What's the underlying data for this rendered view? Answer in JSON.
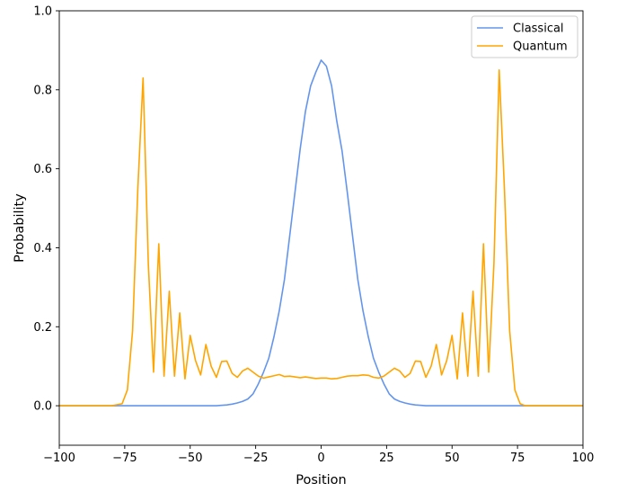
{
  "chart_data": {
    "type": "line",
    "title": "",
    "xlabel": "Position",
    "ylabel": "Probability",
    "xlim": [
      -100,
      100
    ],
    "ylim": [
      -0.1,
      1.0
    ],
    "xticks": [
      -100,
      -75,
      -50,
      -25,
      0,
      25,
      50,
      75,
      100
    ],
    "xtick_labels": [
      "−100",
      "−75",
      "−50",
      "−25",
      "0",
      "25",
      "50",
      "75",
      "100"
    ],
    "yticks": [
      0.0,
      0.2,
      0.4,
      0.6,
      0.8,
      1.0
    ],
    "ytick_labels": [
      "0.0",
      "0.2",
      "0.4",
      "0.6",
      "0.8",
      "1.0"
    ],
    "grid": false,
    "legend_position": "top-right",
    "series": [
      {
        "name": "Classical",
        "color": "#6495ed",
        "x": [
          -100,
          -80,
          -60,
          -40,
          -36,
          -34,
          -32,
          -30,
          -28,
          -26,
          -24,
          -22,
          -20,
          -18,
          -16,
          -14,
          -12,
          -10,
          -8,
          -6,
          -4,
          -2,
          0,
          2,
          4,
          6,
          8,
          10,
          12,
          14,
          16,
          18,
          20,
          22,
          24,
          26,
          28,
          30,
          32,
          34,
          36,
          40,
          60,
          80,
          100
        ],
        "y": [
          0.0,
          0.0,
          0.0,
          0.0,
          0.002,
          0.004,
          0.007,
          0.011,
          0.017,
          0.03,
          0.055,
          0.085,
          0.12,
          0.175,
          0.24,
          0.32,
          0.43,
          0.54,
          0.65,
          0.745,
          0.81,
          0.845,
          0.875,
          0.86,
          0.81,
          0.72,
          0.645,
          0.54,
          0.43,
          0.32,
          0.24,
          0.175,
          0.12,
          0.085,
          0.055,
          0.03,
          0.017,
          0.011,
          0.007,
          0.004,
          0.002,
          0.0,
          0.0,
          0.0,
          0.0
        ]
      },
      {
        "name": "Quantum",
        "color": "#ffa500",
        "x": [
          -100,
          -80,
          -76,
          -74,
          -72,
          -70,
          -68,
          -66,
          -64,
          -62,
          -60,
          -58,
          -56,
          -54,
          -52,
          -50,
          -48,
          -46,
          -44,
          -42,
          -40,
          -38,
          -36,
          -34,
          -32,
          -30,
          -28,
          -26,
          -24,
          -22,
          -20,
          -18,
          -16,
          -14,
          -12,
          -10,
          -8,
          -6,
          -4,
          -2,
          0,
          2,
          4,
          6,
          8,
          10,
          12,
          14,
          16,
          18,
          20,
          22,
          24,
          26,
          28,
          30,
          32,
          34,
          36,
          38,
          40,
          42,
          44,
          46,
          48,
          50,
          52,
          54,
          56,
          58,
          60,
          62,
          64,
          66,
          68,
          70,
          72,
          74,
          76,
          78,
          80,
          100
        ],
        "y": [
          0.0,
          0.0,
          0.005,
          0.04,
          0.19,
          0.55,
          0.83,
          0.36,
          0.085,
          0.41,
          0.075,
          0.29,
          0.075,
          0.235,
          0.068,
          0.178,
          0.115,
          0.078,
          0.155,
          0.1,
          0.072,
          0.112,
          0.113,
          0.082,
          0.072,
          0.088,
          0.095,
          0.085,
          0.075,
          0.07,
          0.073,
          0.076,
          0.079,
          0.074,
          0.075,
          0.073,
          0.071,
          0.073,
          0.071,
          0.069,
          0.07,
          0.07,
          0.068,
          0.069,
          0.072,
          0.075,
          0.076,
          0.076,
          0.078,
          0.077,
          0.072,
          0.07,
          0.075,
          0.085,
          0.095,
          0.088,
          0.072,
          0.082,
          0.113,
          0.112,
          0.072,
          0.1,
          0.155,
          0.078,
          0.115,
          0.178,
          0.068,
          0.235,
          0.075,
          0.29,
          0.075,
          0.41,
          0.085,
          0.36,
          0.85,
          0.55,
          0.19,
          0.04,
          0.005,
          0.0,
          0.0,
          0.0
        ]
      }
    ]
  }
}
